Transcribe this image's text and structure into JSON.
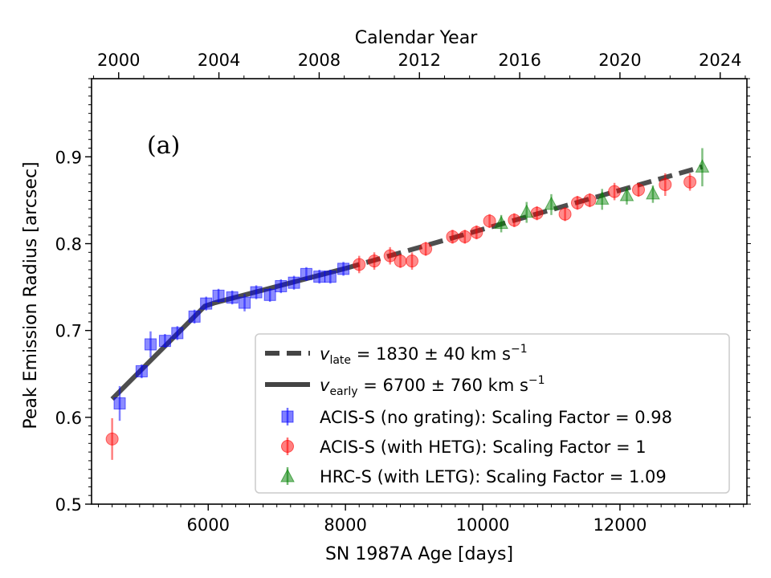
{
  "chart_data": {
    "type": "scatter",
    "panel_label": "(a)",
    "xlabel": "SN 1987A Age [days]",
    "ylabel": "Peak Emission Radius [arcsec]",
    "top_xlabel": "Calendar Year",
    "xlim": [
      4300,
      13850
    ],
    "ylim": [
      0.5,
      0.99
    ],
    "xticks": [
      6000,
      8000,
      10000,
      12000
    ],
    "xtick_labels": [
      "6000",
      "8000",
      "10000",
      "12000"
    ],
    "yticks": [
      0.5,
      0.6,
      0.7,
      0.8,
      0.9
    ],
    "ytick_labels": [
      "0.5",
      "0.6",
      "0.7",
      "0.8",
      "0.9"
    ],
    "top_ticks": [
      {
        "label": "2000",
        "day": 4695
      },
      {
        "label": "2004",
        "day": 6156
      },
      {
        "label": "2008",
        "day": 7617
      },
      {
        "label": "2012",
        "day": 9078
      },
      {
        "label": "2016",
        "day": 10539
      },
      {
        "label": "2020",
        "day": 12000
      },
      {
        "label": "2024",
        "day": 13461
      }
    ],
    "legend_position": "lower-right",
    "fits": [
      {
        "name": "v_late",
        "label_symbol": "v",
        "label_sub": "late",
        "label_value": " = 1830 ± 40 km s",
        "label_sup": "−1",
        "style": "dashed",
        "color": "#444444",
        "x": [
          8000,
          13200
        ],
        "y": [
          0.7715,
          0.8885
        ]
      },
      {
        "name": "v_early",
        "label_symbol": "v",
        "label_sub": "early",
        "label_value": " = 6700 ± 760 km s",
        "label_sup": "−1",
        "style": "solid",
        "color": "#444444",
        "x": [
          4600,
          5950,
          6100,
          8000
        ],
        "y": [
          0.621,
          0.728,
          0.732,
          0.7715
        ]
      }
    ],
    "series": [
      {
        "name": "ACIS-S (no grating): Scaling Factor = 0.98",
        "marker": "square",
        "color": "#0000ff",
        "points": [
          {
            "x": 4710,
            "y": 0.616,
            "err": 0.02
          },
          {
            "x": 5030,
            "y": 0.653,
            "err": 0.008
          },
          {
            "x": 5160,
            "y": 0.684,
            "err": 0.015
          },
          {
            "x": 5370,
            "y": 0.688,
            "err": 0.008
          },
          {
            "x": 5550,
            "y": 0.697,
            "err": 0.008
          },
          {
            "x": 5800,
            "y": 0.716,
            "err": 0.008
          },
          {
            "x": 5970,
            "y": 0.731,
            "err": 0.008
          },
          {
            "x": 6150,
            "y": 0.74,
            "err": 0.008
          },
          {
            "x": 6350,
            "y": 0.738,
            "err": 0.008
          },
          {
            "x": 6530,
            "y": 0.732,
            "err": 0.01
          },
          {
            "x": 6700,
            "y": 0.744,
            "err": 0.008
          },
          {
            "x": 6900,
            "y": 0.741,
            "err": 0.008
          },
          {
            "x": 7060,
            "y": 0.751,
            "err": 0.008
          },
          {
            "x": 7250,
            "y": 0.755,
            "err": 0.008
          },
          {
            "x": 7430,
            "y": 0.765,
            "err": 0.008
          },
          {
            "x": 7620,
            "y": 0.762,
            "err": 0.008
          },
          {
            "x": 7780,
            "y": 0.762,
            "err": 0.008
          },
          {
            "x": 7970,
            "y": 0.771,
            "err": 0.008
          }
        ]
      },
      {
        "name": "ACIS-S (with HETG): Scaling Factor = 1",
        "marker": "circle",
        "color": "#ff0000",
        "points": [
          {
            "x": 4600,
            "y": 0.575,
            "err": 0.024
          },
          {
            "x": 8200,
            "y": 0.776,
            "err": 0.01
          },
          {
            "x": 8420,
            "y": 0.78,
            "err": 0.01
          },
          {
            "x": 8650,
            "y": 0.786,
            "err": 0.01
          },
          {
            "x": 8800,
            "y": 0.78,
            "err": 0.008
          },
          {
            "x": 8970,
            "y": 0.78,
            "err": 0.01
          },
          {
            "x": 9170,
            "y": 0.794,
            "err": 0.008
          },
          {
            "x": 9560,
            "y": 0.808,
            "err": 0.008
          },
          {
            "x": 9740,
            "y": 0.808,
            "err": 0.008
          },
          {
            "x": 9910,
            "y": 0.813,
            "err": 0.008
          },
          {
            "x": 10100,
            "y": 0.826,
            "err": 0.008
          },
          {
            "x": 10460,
            "y": 0.827,
            "err": 0.008
          },
          {
            "x": 10790,
            "y": 0.835,
            "err": 0.008
          },
          {
            "x": 11200,
            "y": 0.834,
            "err": 0.008
          },
          {
            "x": 11380,
            "y": 0.847,
            "err": 0.008
          },
          {
            "x": 11560,
            "y": 0.85,
            "err": 0.008
          },
          {
            "x": 11920,
            "y": 0.86,
            "err": 0.01
          },
          {
            "x": 12270,
            "y": 0.862,
            "err": 0.008
          },
          {
            "x": 12660,
            "y": 0.868,
            "err": 0.013
          },
          {
            "x": 13020,
            "y": 0.871,
            "err": 0.01
          }
        ]
      },
      {
        "name": "HRC-S (with LETG): Scaling Factor = 1.09",
        "marker": "triangle",
        "color": "#008000",
        "points": [
          {
            "x": 10270,
            "y": 0.823,
            "err": 0.01
          },
          {
            "x": 10640,
            "y": 0.836,
            "err": 0.012
          },
          {
            "x": 11000,
            "y": 0.845,
            "err": 0.012
          },
          {
            "x": 11740,
            "y": 0.851,
            "err": 0.012
          },
          {
            "x": 12100,
            "y": 0.855,
            "err": 0.01
          },
          {
            "x": 12480,
            "y": 0.857,
            "err": 0.01
          },
          {
            "x": 13200,
            "y": 0.888,
            "err": 0.022
          }
        ]
      }
    ]
  }
}
